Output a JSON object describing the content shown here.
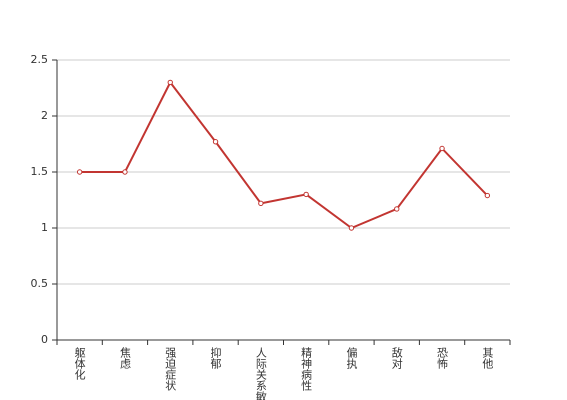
{
  "chart_data": {
    "type": "line",
    "categories": [
      "躯体化",
      "焦虑",
      "强迫症状",
      "抑郁",
      "人际关系敏感",
      "精神病性",
      "偏执",
      "敌对",
      "恐怖",
      "其他"
    ],
    "series": [
      {
        "color": "#c23531",
        "values": [
          1.5,
          1.5,
          2.3,
          1.77,
          1.22,
          1.3,
          1.0,
          1.17,
          1.71,
          1.29
        ]
      }
    ],
    "ylim": [
      0,
      2.5
    ],
    "yticks": [
      0,
      0.5,
      1,
      1.5,
      2,
      2.5
    ],
    "grid": true
  }
}
